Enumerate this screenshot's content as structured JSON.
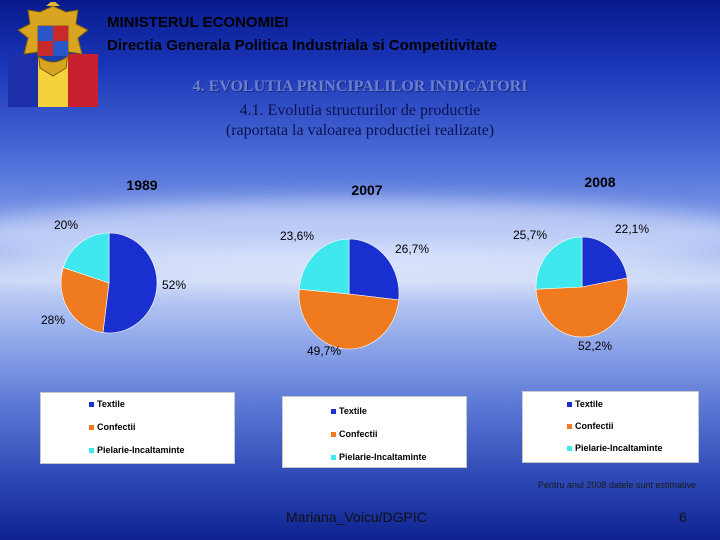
{
  "header": {
    "line1": "MINISTERUL ECONOMIEI",
    "line2": "Directia Generala Politica Industriala si Competitivitate"
  },
  "title": {
    "main": "4. EVOLUTIA PRINCIPALILOR INDICATORI",
    "sub": "4.1. Evolutia structurilor de productie",
    "sub2": "(raportata la valoarea productiei realizate)"
  },
  "colors": {
    "textile": "#1a2fd0",
    "confectii": "#f07a20",
    "pielarie": "#3ee8ee"
  },
  "chart_data": [
    {
      "type": "pie",
      "title": "1989",
      "categories": [
        "Textile",
        "Confectii",
        "Pielarie-Incaltaminte"
      ],
      "values": [
        52,
        28,
        20
      ],
      "data_labels": [
        "52%",
        "28%",
        "20%"
      ],
      "legend": [
        "Textile",
        "Confectii",
        "Pielarie-Incaltaminte"
      ]
    },
    {
      "type": "pie",
      "title": "2007",
      "categories": [
        "Textile",
        "Confectii",
        "Pielarie-Incaltaminte"
      ],
      "values": [
        26.7,
        49.7,
        23.6
      ],
      "data_labels": [
        "26,7%",
        "49,7%",
        "23,6%"
      ],
      "legend": [
        "Textile",
        "Confectii",
        "Pielarie-Incaltaminte"
      ]
    },
    {
      "type": "pie",
      "title": "2008",
      "categories": [
        "Textile",
        "Confectii",
        "Pielarie-Incaltaminte"
      ],
      "values": [
        22.1,
        52.2,
        25.7
      ],
      "data_labels": [
        "22,1%",
        "52,2%",
        "25,7%"
      ],
      "legend": [
        "Textile",
        "Confectii",
        "Pielarie-Incaltaminte"
      ]
    }
  ],
  "note": "Pentru anul 2008 datele sunt estimative",
  "footer": {
    "author": "Mariana_Voicu/DGPIC",
    "page": "6"
  }
}
